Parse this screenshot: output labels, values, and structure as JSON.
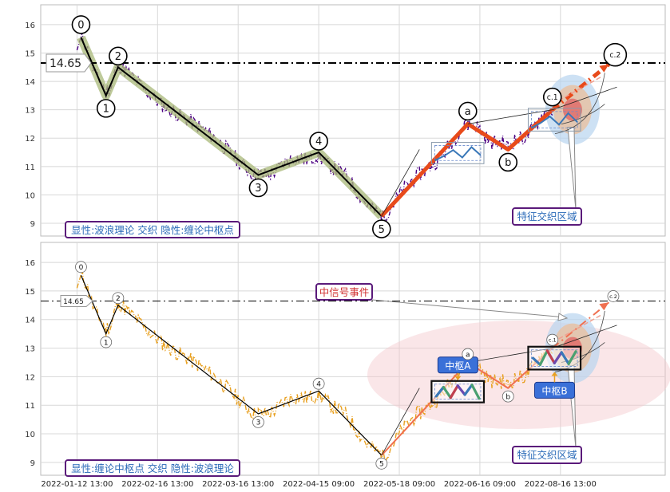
{
  "chart_data": [
    {
      "type": "line",
      "panel": "top",
      "ylim": [
        8.55,
        16.7
      ],
      "y_ticks": [
        9,
        10,
        11,
        12,
        13,
        14,
        15,
        16
      ],
      "grid": true,
      "ref_line": {
        "value": 14.65,
        "label": "14.65"
      },
      "price_color": "#4b0082",
      "wave_color": "#000000",
      "wave_halo_color": "#a8b878",
      "abc_color": "#e84a1a",
      "wave_points": [
        {
          "label": "0",
          "x": 0.05,
          "y": 15.55
        },
        {
          "label": "1",
          "x": 0.36,
          "y": 13.5
        },
        {
          "label": "2",
          "x": 0.51,
          "y": 14.5
        },
        {
          "label": "3",
          "x": 2.25,
          "y": 10.7
        },
        {
          "label": "4",
          "x": 3.0,
          "y": 11.5
        },
        {
          "label": "5",
          "x": 3.78,
          "y": 9.25
        }
      ],
      "abc_points": [
        {
          "label": "5",
          "x": 3.78,
          "y": 9.25
        },
        {
          "label": "a",
          "x": 4.85,
          "y": 12.5
        },
        {
          "label": "b",
          "x": 5.35,
          "y": 11.6
        },
        {
          "label": "c.1",
          "x": 5.9,
          "y": 13.0
        },
        {
          "label": "c.2",
          "x": 6.6,
          "y": 14.6
        }
      ],
      "legend_text": "显性:波浪理论 交织 隐性:缠论中枢点",
      "annotation": "特征交织区域"
    },
    {
      "type": "line",
      "panel": "bottom",
      "ylim": [
        8.55,
        16.7
      ],
      "y_ticks": [
        9,
        10,
        11,
        12,
        13,
        14,
        15,
        16
      ],
      "grid": true,
      "ref_line": {
        "value": 14.65,
        "label": "14.65"
      },
      "price_color": "#e8a020",
      "wave_color": "#000000",
      "abc_color": "#f07050",
      "wave_points": [
        {
          "label": "0",
          "x": 0.05,
          "y": 15.55
        },
        {
          "label": "1",
          "x": 0.36,
          "y": 13.5
        },
        {
          "label": "2",
          "x": 0.51,
          "y": 14.5
        },
        {
          "label": "3",
          "x": 2.25,
          "y": 10.7
        },
        {
          "label": "4",
          "x": 3.0,
          "y": 11.5
        },
        {
          "label": "5",
          "x": 3.78,
          "y": 9.25
        }
      ],
      "abc_points": [
        {
          "label": "5",
          "x": 3.78,
          "y": 9.25
        },
        {
          "label": "a",
          "x": 4.85,
          "y": 12.5
        },
        {
          "label": "b",
          "x": 5.35,
          "y": 11.6
        },
        {
          "label": "c.1",
          "x": 5.9,
          "y": 13.0
        },
        {
          "label": "c.2",
          "x": 6.6,
          "y": 14.6
        }
      ],
      "pivots": [
        {
          "label": "中枢A",
          "x0": 4.4,
          "x1": 5.05,
          "y0": 11.1,
          "y1": 11.85
        },
        {
          "label": "中枢B",
          "x0": 5.6,
          "x1": 6.25,
          "y0": 12.25,
          "y1": 13.05
        }
      ],
      "legend_text": "显性:缠论中枢点 交织 隐性:波浪理论",
      "annotation": "特征交织区域",
      "event_label": "中信号事件"
    }
  ],
  "x_axis": {
    "tick_labels": [
      "2022-01-12 13:00",
      "2022-02-16 13:00",
      "2022-03-16 13:00",
      "2022-04-15 09:00",
      "2022-05-18 09:00",
      "2022-06-16 09:00",
      "2022-08-16 13:00"
    ],
    "xlim": [
      -0.45,
      7.3
    ]
  }
}
